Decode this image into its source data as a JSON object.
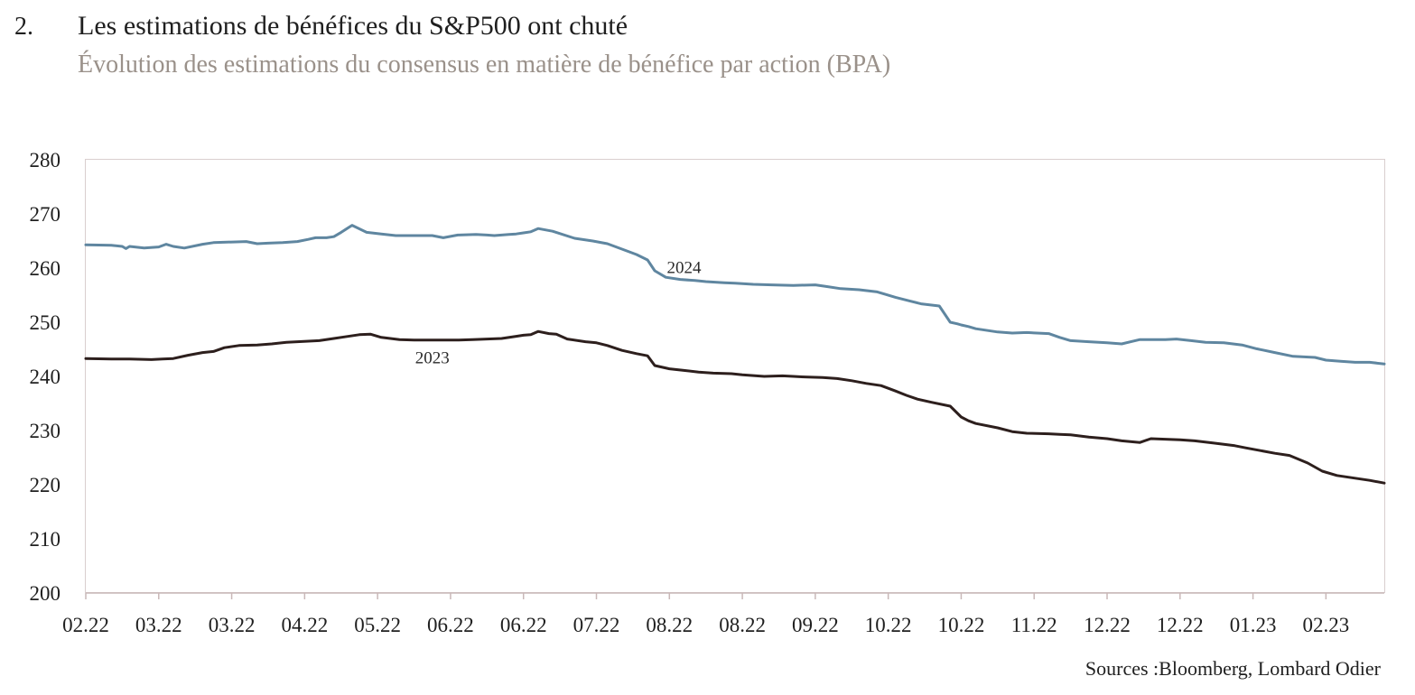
{
  "header": {
    "number": "2.",
    "title": "Les estimations de bénéfices du S&P500 ont chuté",
    "subtitle": "Évolution des estimations du consensus en matière de bénéfice par action (BPA)"
  },
  "footer": {
    "source": "Sources :Bloomberg, Lombard Odier"
  },
  "colors": {
    "series_2024": "#5f86a0",
    "series_2023": "#2d1f1d",
    "frame": "#d9cfcf",
    "axis": "#c9b8b8"
  },
  "chart_data": {
    "type": "line",
    "title": "Les estimations de bénéfices du S&P500 ont chuté",
    "subtitle": "Évolution des estimations du consensus en matière de bénéfice par action (BPA)",
    "xlabel": "",
    "ylabel": "",
    "ylim": [
      200,
      280
    ],
    "yticks": [
      200,
      210,
      220,
      230,
      240,
      250,
      260,
      270,
      280
    ],
    "x_tick_labels": [
      "02.22",
      "03.22",
      "03.22",
      "04.22",
      "05.22",
      "06.22",
      "06.22",
      "07.22",
      "08.22",
      "08.22",
      "09.22",
      "10.22",
      "10.22",
      "11.22",
      "12.22",
      "12.22",
      "01.23",
      "02.23"
    ],
    "x_range": [
      0,
      17.8
    ],
    "grid": false,
    "legend": "inline labels",
    "series": [
      {
        "name": "2024",
        "label_pos": [
          8.2,
          260.1
        ],
        "x": [
          0,
          0.35,
          0.5,
          0.55,
          0.6,
          0.8,
          1.0,
          1.1,
          1.2,
          1.35,
          1.6,
          1.75,
          2.2,
          2.35,
          2.5,
          2.7,
          2.9,
          3.05,
          3.15,
          3.3,
          3.4,
          3.5,
          3.65,
          3.85,
          4.05,
          4.25,
          4.35,
          4.5,
          4.75,
          4.9,
          5.1,
          5.35,
          5.5,
          5.6,
          5.8,
          5.9,
          6.0,
          6.1,
          6.2,
          6.4,
          6.7,
          6.95,
          7.15,
          7.35,
          7.55,
          7.7,
          7.8,
          7.95,
          8.15,
          8.35,
          8.5,
          8.75,
          8.9,
          9.15,
          9.4,
          9.7,
          10.0,
          10.15,
          10.35,
          10.6,
          10.85,
          10.95,
          11.1,
          11.3,
          11.45,
          11.7,
          11.85,
          11.95,
          12.0,
          12.1,
          12.2,
          12.5,
          12.7,
          12.9,
          13.2,
          13.35,
          13.5,
          13.75,
          14.0,
          14.2,
          14.45,
          14.6,
          14.8,
          14.95,
          15.15,
          15.35,
          15.6,
          15.85,
          16.05,
          16.3,
          16.55,
          16.85,
          17.0,
          17.2,
          17.4,
          17.6,
          17.8
        ],
        "values": [
          264.3,
          264.2,
          264.0,
          263.6,
          264.0,
          263.7,
          263.9,
          264.4,
          264.0,
          263.7,
          264.4,
          264.7,
          264.9,
          264.5,
          264.6,
          264.7,
          264.9,
          265.3,
          265.6,
          265.6,
          265.8,
          266.6,
          267.9,
          266.6,
          266.3,
          266.0,
          266.0,
          266.0,
          266.0,
          265.6,
          266.1,
          266.2,
          266.1,
          266.0,
          266.2,
          266.3,
          266.5,
          266.7,
          267.3,
          266.8,
          265.5,
          265.0,
          264.5,
          263.5,
          262.5,
          261.5,
          259.5,
          258.3,
          257.9,
          257.7,
          257.5,
          257.3,
          257.2,
          257.0,
          256.9,
          256.8,
          256.9,
          256.6,
          256.2,
          256.0,
          255.6,
          255.2,
          254.6,
          253.9,
          253.4,
          253.0,
          250.0,
          249.7,
          249.5,
          249.2,
          248.8,
          248.2,
          248.0,
          248.1,
          247.9,
          247.2,
          246.6,
          246.4,
          246.2,
          246.0,
          246.8,
          246.8,
          246.8,
          246.9,
          246.6,
          246.3,
          246.2,
          245.8,
          245.1,
          244.4,
          243.7,
          243.5,
          243.0,
          242.8,
          242.6,
          242.6,
          242.3
        ]
      },
      {
        "name": "2023",
        "label_pos": [
          4.75,
          243.4
        ],
        "x": [
          0,
          0.35,
          0.6,
          0.9,
          1.05,
          1.2,
          1.4,
          1.6,
          1.75,
          1.9,
          2.1,
          2.35,
          2.55,
          2.75,
          2.9,
          3.05,
          3.2,
          3.4,
          3.55,
          3.75,
          3.9,
          4.05,
          4.3,
          4.5,
          4.7,
          4.9,
          5.1,
          5.3,
          5.5,
          5.7,
          5.9,
          6.0,
          6.1,
          6.2,
          6.35,
          6.45,
          6.6,
          6.85,
          7.0,
          7.15,
          7.35,
          7.55,
          7.7,
          7.8,
          8.0,
          8.2,
          8.4,
          8.6,
          8.85,
          9.0,
          9.3,
          9.55,
          9.7,
          9.85,
          10.1,
          10.3,
          10.5,
          10.7,
          10.9,
          11.0,
          11.1,
          11.25,
          11.4,
          11.6,
          11.85,
          12.0,
          12.1,
          12.2,
          12.5,
          12.7,
          12.9,
          13.2,
          13.35,
          13.5,
          13.75,
          14.0,
          14.2,
          14.45,
          14.6,
          14.8,
          15.0,
          15.2,
          15.45,
          15.75,
          15.9,
          16.1,
          16.3,
          16.5,
          16.75,
          16.95,
          17.15,
          17.4,
          17.6,
          17.8
        ],
        "values": [
          243.3,
          243.2,
          243.2,
          243.1,
          243.2,
          243.3,
          243.9,
          244.4,
          244.6,
          245.3,
          245.7,
          245.8,
          246.0,
          246.3,
          246.4,
          246.5,
          246.6,
          247.0,
          247.3,
          247.7,
          247.8,
          247.2,
          246.8,
          246.7,
          246.7,
          246.7,
          246.7,
          246.8,
          246.9,
          247.0,
          247.4,
          247.6,
          247.7,
          248.3,
          247.9,
          247.8,
          246.9,
          246.4,
          246.2,
          245.7,
          244.8,
          244.2,
          243.8,
          242.0,
          241.4,
          241.1,
          240.8,
          240.6,
          240.5,
          240.3,
          240.0,
          240.1,
          240.0,
          239.9,
          239.8,
          239.6,
          239.2,
          238.7,
          238.3,
          237.8,
          237.3,
          236.5,
          235.8,
          235.2,
          234.5,
          232.5,
          231.8,
          231.3,
          230.5,
          229.8,
          229.5,
          229.4,
          229.3,
          229.2,
          228.8,
          228.5,
          228.1,
          227.8,
          228.5,
          228.4,
          228.3,
          228.1,
          227.7,
          227.2,
          226.8,
          226.3,
          225.8,
          225.4,
          224.0,
          222.5,
          221.7,
          221.2,
          220.8,
          220.3
        ]
      }
    ]
  }
}
